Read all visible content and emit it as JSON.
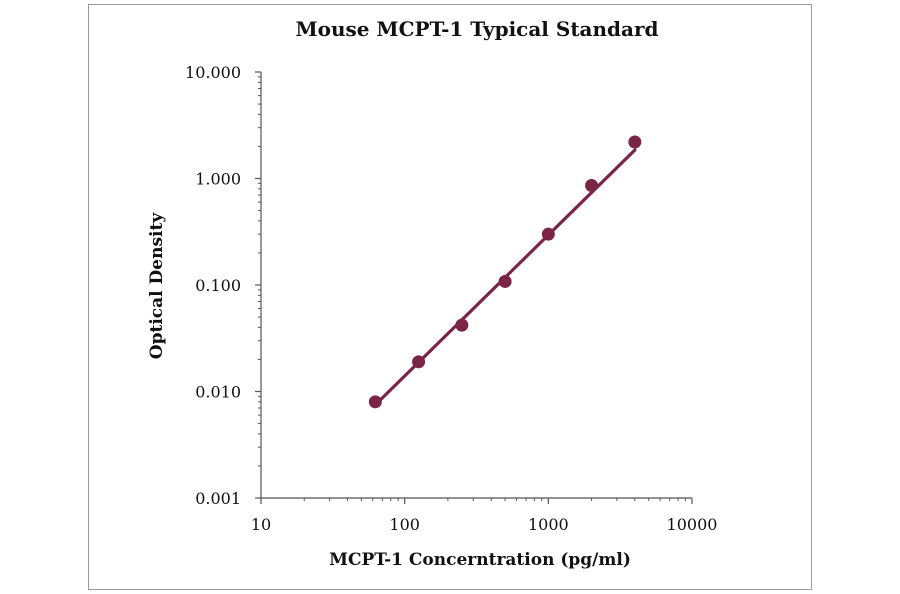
{
  "chart_data": {
    "type": "scatter",
    "title": "Mouse MCPT-1 Typical Standard",
    "xlabel": "MCPT-1 Concerntration (pg/ml)",
    "ylabel": "Optical Density",
    "x_scale": "log",
    "y_scale": "log",
    "xlim": [
      10,
      10000
    ],
    "ylim": [
      0.001,
      10
    ],
    "x_ticks": [
      "10",
      "100",
      "1000",
      "10000"
    ],
    "y_ticks": [
      "10.000",
      "1.000",
      "0.100",
      "0.010",
      "0.001"
    ],
    "grid": false,
    "legend": "none",
    "colors": {
      "series": "#7a2448",
      "axis": "#555555"
    },
    "series": [
      {
        "x": [
          62.5,
          125,
          250,
          500,
          1000,
          2000,
          4000
        ],
        "y": [
          0.008,
          0.019,
          0.042,
          0.108,
          0.3,
          0.86,
          2.2
        ]
      }
    ],
    "trendline": {
      "x": [
        62.5,
        4000
      ],
      "y": [
        0.0075,
        1.85
      ]
    }
  }
}
